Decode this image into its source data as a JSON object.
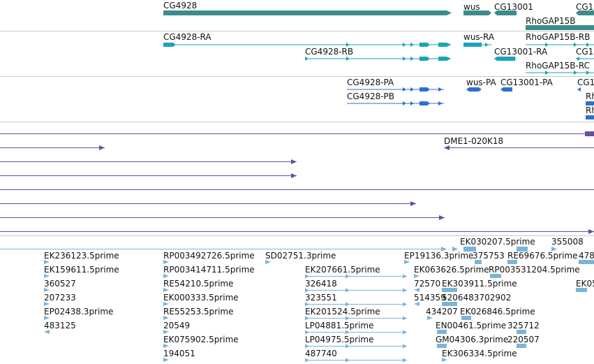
{
  "colors": {
    "gene": "#3c8c8c",
    "transcript": "#19a3bd",
    "protein": "#2f6fcf",
    "clone": "#6a4ca0",
    "est": "#7ab4d8",
    "divider": "#bfbfbf"
  },
  "tracks": {
    "genes": {
      "items": [
        {
          "label": "CG4928"
        },
        {
          "label": "wus"
        },
        {
          "label": "CG13001"
        },
        {
          "label": "CG1"
        },
        {
          "label": "RhoGAP15B"
        }
      ]
    },
    "transcripts": {
      "items": [
        {
          "label": "CG4928-RA"
        },
        {
          "label": "CG4928-RB"
        },
        {
          "label": "wus-RA"
        },
        {
          "label": "RhoGAP15B-RB"
        },
        {
          "label": "CG13001-RA"
        },
        {
          "label": "CG1"
        },
        {
          "label": "RhoGAP15B-RC"
        }
      ]
    },
    "proteins": {
      "items": [
        {
          "label": "CG4928-PA"
        },
        {
          "label": "CG4928-PB"
        },
        {
          "label": "wus-PA"
        },
        {
          "label": "CG13001-PA"
        },
        {
          "label": "CG1"
        },
        {
          "label": "Rh"
        },
        {
          "label": "Rh"
        }
      ]
    },
    "clones": {
      "items": [
        {
          "label": "DME1-020K18"
        }
      ]
    },
    "ests": {
      "items": [
        {
          "label": "EK236123.5prime"
        },
        {
          "label": "EK159611.5prime"
        },
        {
          "label": "360527"
        },
        {
          "label": "207233"
        },
        {
          "label": "EP02438.3prime"
        },
        {
          "label": "483125"
        },
        {
          "label": "RP003492726.5prime"
        },
        {
          "label": "RP003414711.5prime"
        },
        {
          "label": "RE54210.5prime"
        },
        {
          "label": "EK000333.5prime"
        },
        {
          "label": "RE55253.5prime"
        },
        {
          "label": "20549"
        },
        {
          "label": "EK075902.5prime"
        },
        {
          "label": "194051"
        },
        {
          "label": "SD02751.3prime"
        },
        {
          "label": "EK207661.5prime"
        },
        {
          "label": "326418"
        },
        {
          "label": "323551"
        },
        {
          "label": "EK201524.5prime"
        },
        {
          "label": "LP04881.5prime"
        },
        {
          "label": "LP04975.5prime"
        },
        {
          "label": "487740"
        },
        {
          "label": "EP19136.3prime"
        },
        {
          "label": "EK063626.5prime"
        },
        {
          "label": "72570"
        },
        {
          "label": "514359"
        },
        {
          "label": "434207"
        },
        {
          "label": "EK030207.5prime"
        },
        {
          "label": "375753"
        },
        {
          "label": "RE69676.5prime"
        },
        {
          "label": "478"
        },
        {
          "label": "355008"
        },
        {
          "label": "RP003531204.5prime"
        },
        {
          "label": "EK303911.5prime"
        },
        {
          "label": "5206483702902"
        },
        {
          "label": "EK026846.5prime"
        },
        {
          "label": "EN00461.5prime"
        },
        {
          "label": "325712"
        },
        {
          "label": "GM04306.3prime"
        },
        {
          "label": "220507"
        },
        {
          "label": "EK306334.5prime"
        },
        {
          "label": "EK05"
        }
      ]
    }
  }
}
